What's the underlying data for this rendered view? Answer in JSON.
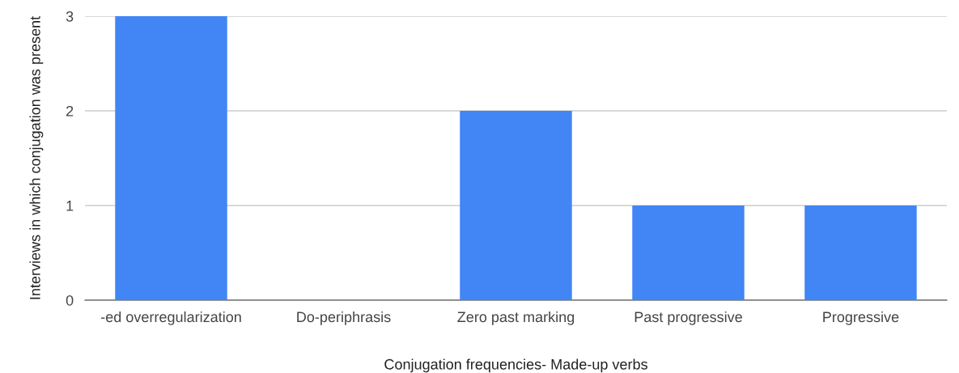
{
  "chart_data": {
    "type": "bar",
    "xlabel": "Conjugation frequencies- Made-up verbs",
    "ylabel": "Interviews in which conjugation was present",
    "categories": [
      "-ed overregularization",
      "Do-periphrasis",
      "Zero past marking",
      "Past progressive",
      "Progressive"
    ],
    "values": [
      3,
      0,
      2,
      1,
      1
    ],
    "color": "#4285f4",
    "ylim": [
      0,
      3
    ],
    "yticks": [
      0,
      1,
      2,
      3
    ],
    "grid": "y"
  }
}
